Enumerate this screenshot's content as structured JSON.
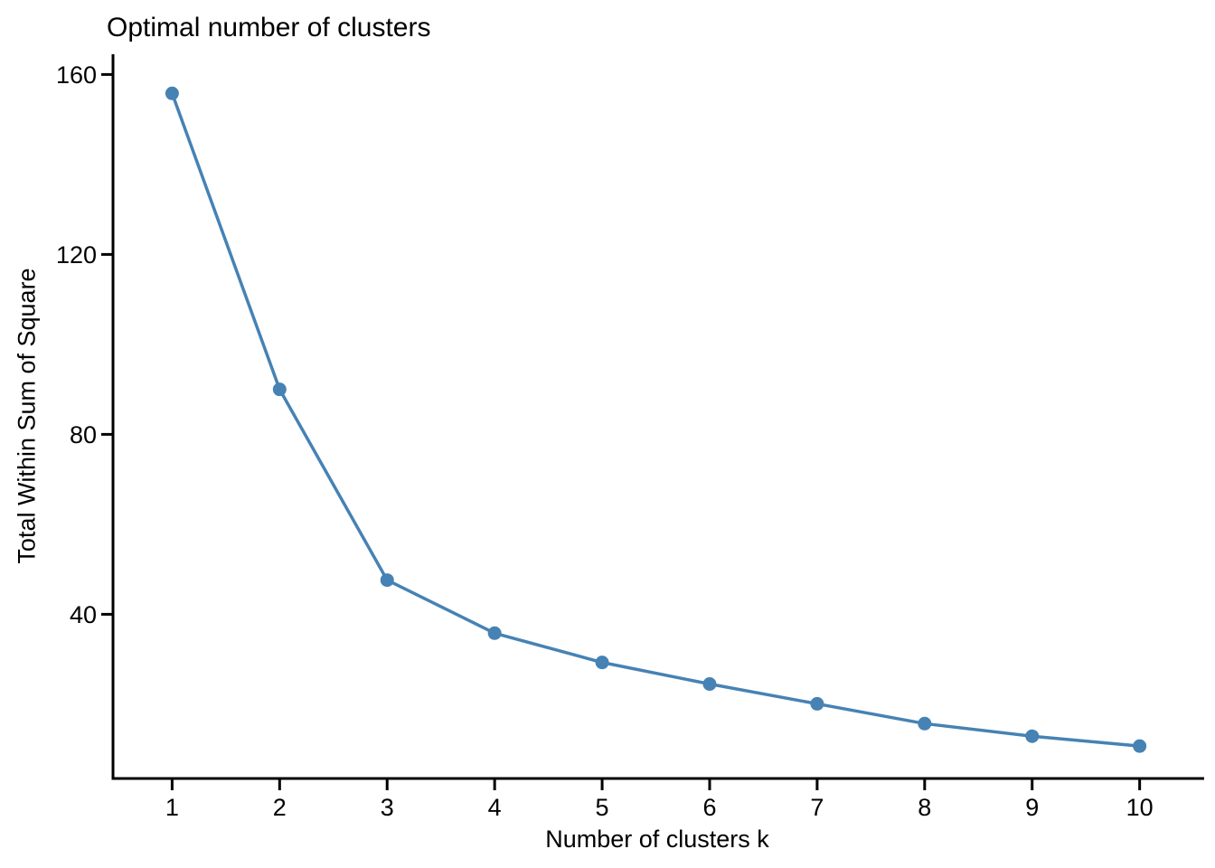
{
  "figure": {
    "background_color": "#ffffff",
    "text_color": "#000000",
    "axis_color": "#000000"
  },
  "chart_data": {
    "type": "line",
    "title": "Optimal number of clusters",
    "xlabel": "Number of clusters k",
    "ylabel": "Total Within Sum of Square",
    "series": [
      {
        "name": "total-within-sum-of-square",
        "x": [
          1,
          2,
          3,
          4,
          5,
          6,
          7,
          8,
          9,
          10
        ],
        "y": [
          155.8,
          90.0,
          47.6,
          35.8,
          29.3,
          24.5,
          20.1,
          15.7,
          12.9,
          10.7
        ],
        "color": "#4682B4",
        "marker": "circle",
        "marker_radius": 7.5,
        "line_width": 3.5
      }
    ],
    "xticks": [
      1,
      2,
      3,
      4,
      5,
      6,
      7,
      8,
      9,
      10
    ],
    "yticks": [
      40,
      80,
      120,
      160
    ],
    "xlim": [
      0.45,
      10.6
    ],
    "ylim": [
      3.5,
      164.5
    ],
    "grid": false,
    "legend_position": "none"
  }
}
